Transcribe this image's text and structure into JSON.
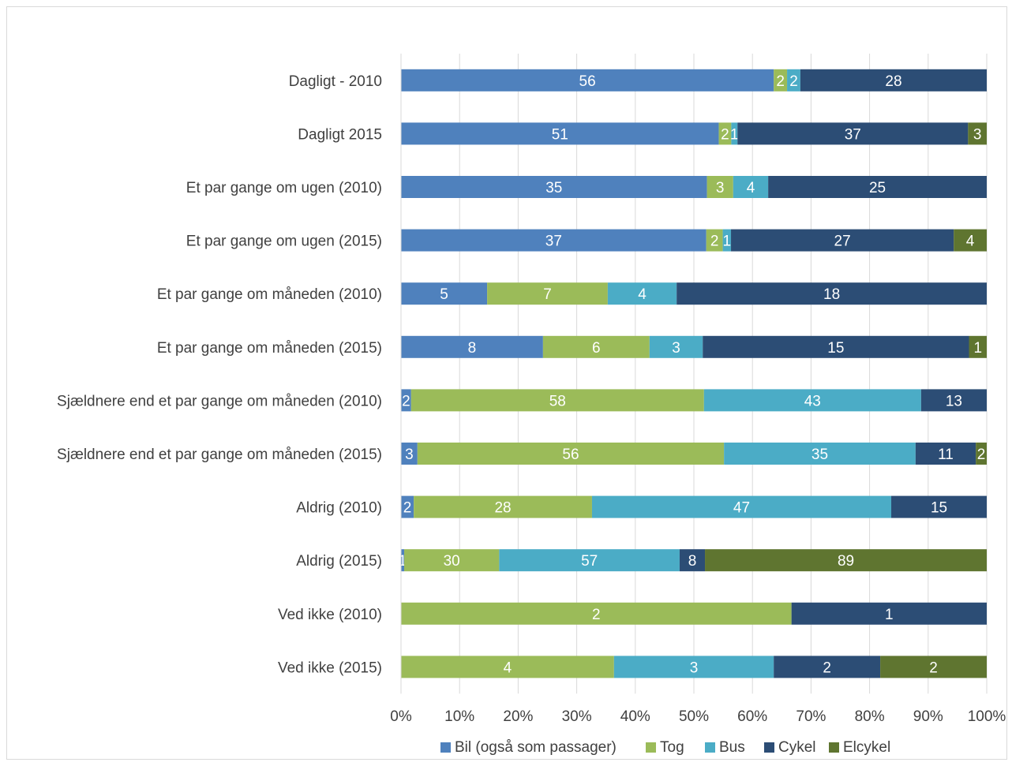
{
  "chart_data": {
    "type": "bar",
    "orientation": "horizontal",
    "stacked": "percent",
    "categories": [
      "Dagligt - 2010",
      "Dagligt 2015",
      "Et par gange om ugen (2010)",
      "Et par gange om ugen (2015)",
      "Et par gange om måneden (2010)",
      "Et par gange om måneden (2015)",
      "Sjældnere end et par gange om måneden (2010)",
      "Sjældnere end et par gange om måneden (2015)",
      "Aldrig (2010)",
      "Aldrig (2015)",
      "Ved ikke (2010)",
      "Ved ikke (2015)"
    ],
    "series": [
      {
        "name": "Bil (også som passager)",
        "color": "#4f81bd",
        "values": [
          56,
          51,
          35,
          37,
          5,
          8,
          2,
          3,
          2,
          1,
          0,
          0
        ]
      },
      {
        "name": "Tog",
        "color": "#9bbb59",
        "values": [
          2,
          2,
          3,
          2,
          7,
          6,
          58,
          56,
          28,
          30,
          2,
          4
        ]
      },
      {
        "name": "Bus",
        "color": "#4bacc6",
        "values": [
          2,
          1,
          4,
          1,
          4,
          3,
          43,
          35,
          47,
          57,
          0,
          3
        ]
      },
      {
        "name": "Cykel",
        "color": "#2c4d75",
        "values": [
          28,
          37,
          25,
          27,
          18,
          15,
          13,
          11,
          15,
          8,
          1,
          2
        ]
      },
      {
        "name": "Elcykel",
        "color": "#5f7530",
        "values": [
          0,
          3,
          0,
          4,
          0,
          1,
          0,
          2,
          0,
          89,
          0,
          2
        ]
      }
    ],
    "display_values": [
      [
        "56",
        "51",
        "35",
        "37",
        "5",
        "8",
        "2",
        "3",
        "2",
        "1",
        "",
        "0"
      ],
      [
        "2",
        "2",
        "3",
        "2",
        "7",
        "6",
        "58",
        "56",
        "28",
        "30",
        "2",
        "4"
      ],
      [
        "2",
        "1",
        "4",
        "1",
        "4",
        "3",
        "43",
        "35",
        "47",
        "57",
        "",
        "3"
      ],
      [
        "28",
        "37",
        "25",
        "27",
        "18",
        "15",
        "13",
        "11",
        "15",
        "8",
        "1",
        "2"
      ],
      [
        "",
        "3",
        "",
        "4",
        "",
        "1",
        "",
        "2",
        "",
        "89",
        "",
        "2"
      ]
    ],
    "xaxis": {
      "ticks": [
        "0%",
        "10%",
        "20%",
        "30%",
        "40%",
        "50%",
        "60%",
        "70%",
        "80%",
        "90%",
        "100%"
      ],
      "range": [
        0,
        100
      ]
    },
    "grid": true,
    "legend_position": "bottom"
  }
}
